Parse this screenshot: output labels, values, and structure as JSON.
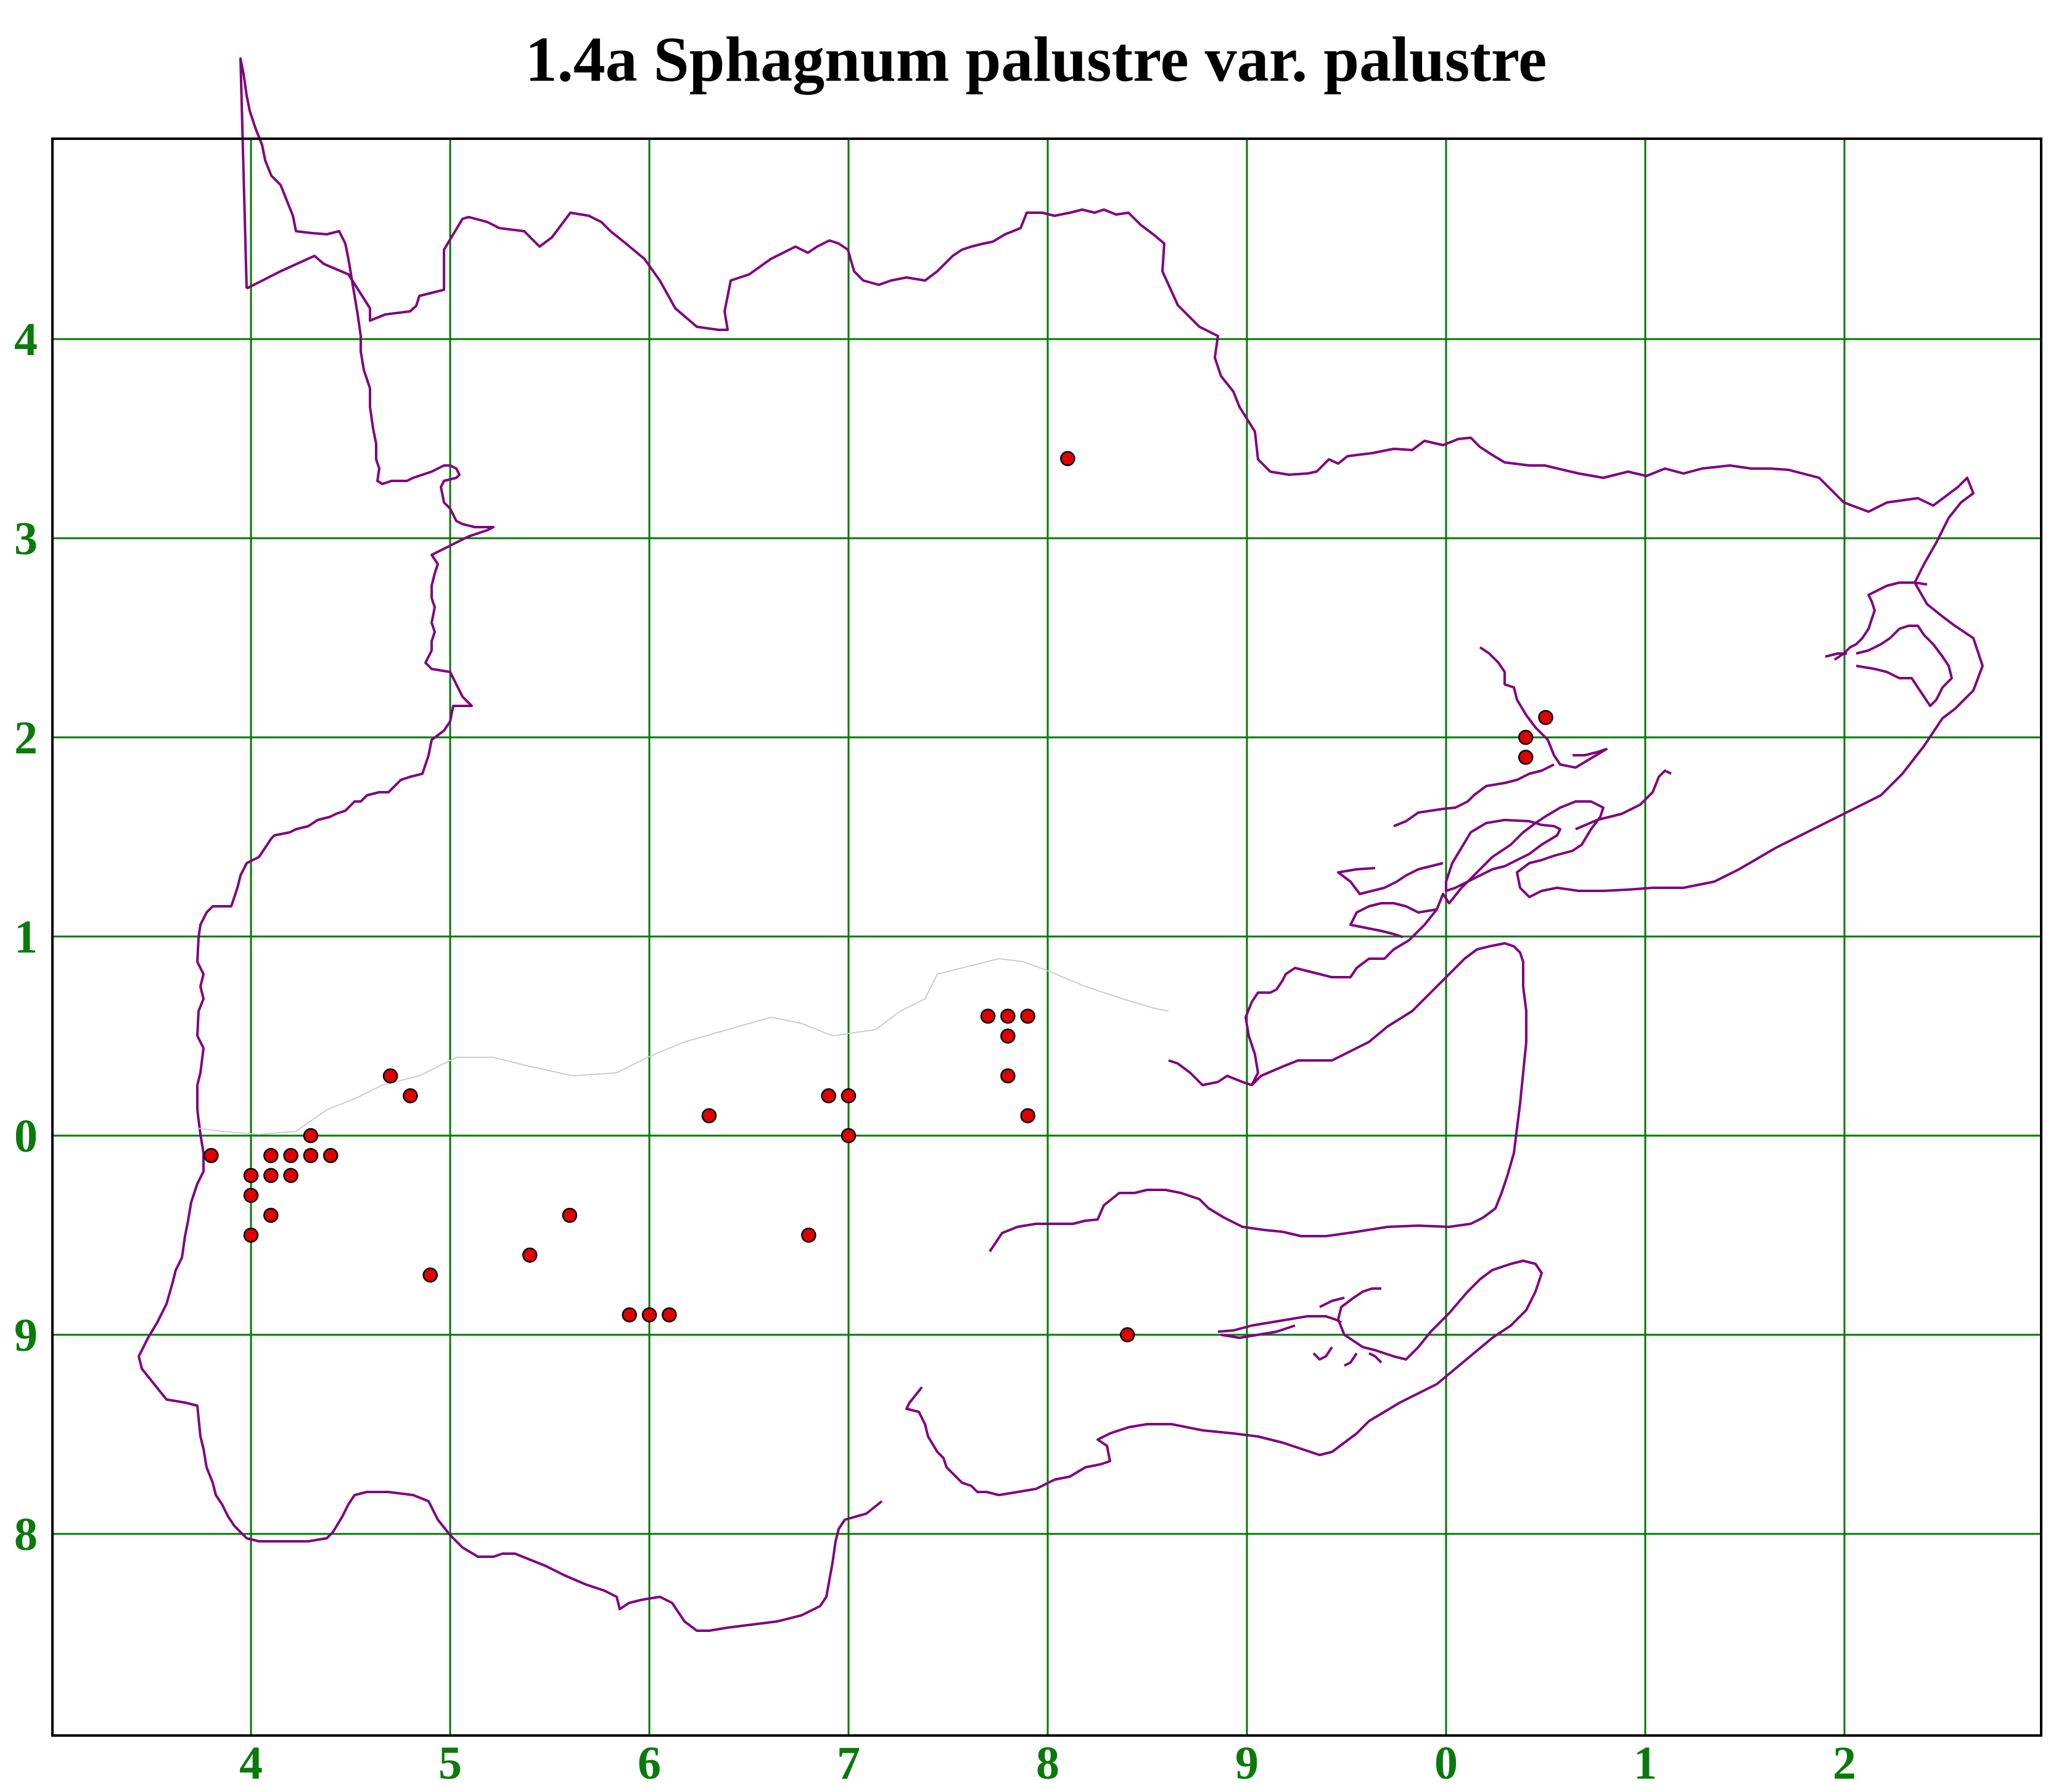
{
  "title": "1.4a Sphagnum palustre var. palustre",
  "colors": {
    "grid": "#007a00",
    "axis_labels": "#0a7a0a",
    "boundary": "#800080",
    "faint_boundary": "#cccccc",
    "record_dot": "#e00000",
    "record_dot_outline": "#000000",
    "frame": "#000000"
  },
  "x_axis_labels": [
    "4",
    "5",
    "6",
    "7",
    "8",
    "9",
    "0",
    "1",
    "2"
  ],
  "y_axis_labels": [
    "4",
    "3",
    "2",
    "1",
    "0",
    "9",
    "8"
  ],
  "records": [
    {
      "x": 8.1,
      "y": 3.4
    },
    {
      "x": 10.4,
      "y": 2.0
    },
    {
      "x": 10.4,
      "y": 1.9
    },
    {
      "x": 10.5,
      "y": 2.1
    },
    {
      "x": 7.7,
      "y": 0.6
    },
    {
      "x": 7.8,
      "y": 0.6
    },
    {
      "x": 7.9,
      "y": 0.6
    },
    {
      "x": 7.8,
      "y": 0.5
    },
    {
      "x": 7.8,
      "y": 0.3
    },
    {
      "x": 7.9,
      "y": 0.1
    },
    {
      "x": 6.9,
      "y": 0.2
    },
    {
      "x": 7.0,
      "y": 0.2
    },
    {
      "x": 7.0,
      "y": 0.0
    },
    {
      "x": 6.3,
      "y": 0.1
    },
    {
      "x": 4.7,
      "y": 0.3
    },
    {
      "x": 4.8,
      "y": 0.2
    },
    {
      "x": 4.3,
      "y": 0.0
    },
    {
      "x": 3.8,
      "y": -0.1
    },
    {
      "x": 4.1,
      "y": -0.1
    },
    {
      "x": 4.2,
      "y": -0.1
    },
    {
      "x": 4.3,
      "y": -0.1
    },
    {
      "x": 4.4,
      "y": -0.1
    },
    {
      "x": 4.0,
      "y": -0.2
    },
    {
      "x": 4.1,
      "y": -0.2
    },
    {
      "x": 4.2,
      "y": -0.2
    },
    {
      "x": 4.0,
      "y": -0.3
    },
    {
      "x": 4.1,
      "y": -0.4
    },
    {
      "x": 5.6,
      "y": -0.4
    },
    {
      "x": 4.0,
      "y": -0.5
    },
    {
      "x": 6.8,
      "y": -0.5
    },
    {
      "x": 5.4,
      "y": -0.6
    },
    {
      "x": 4.9,
      "y": -0.7
    },
    {
      "x": 5.9,
      "y": -0.9
    },
    {
      "x": 6.0,
      "y": -0.9
    },
    {
      "x": 6.1,
      "y": -0.9
    },
    {
      "x": 8.4,
      "y": -1.0
    }
  ]
}
